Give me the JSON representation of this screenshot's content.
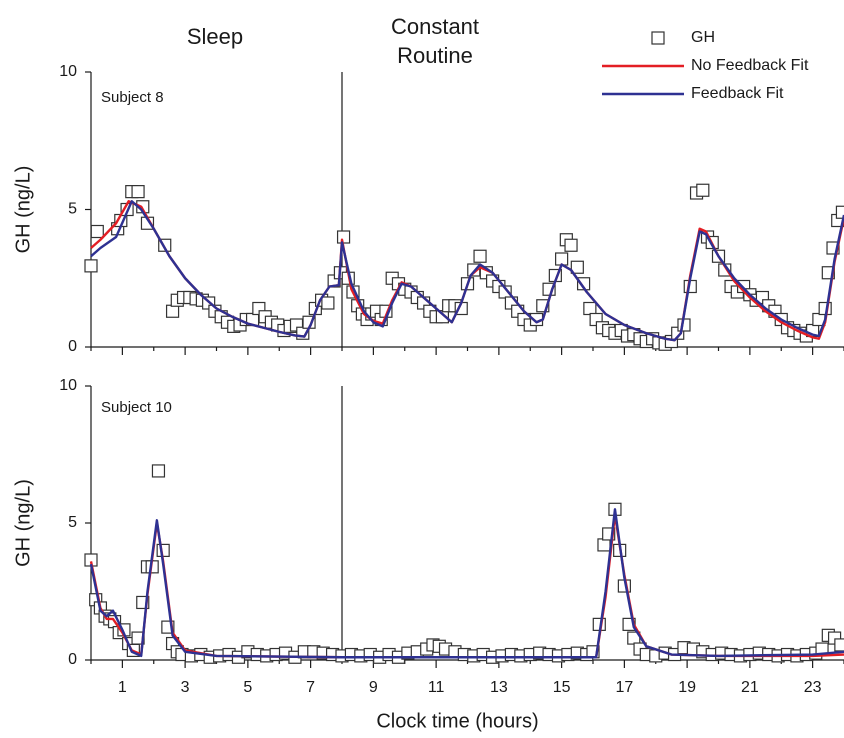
{
  "chart_data": [
    {
      "type": "line",
      "annotations": [
        "Sleep",
        "Constant",
        "Routine",
        "Subject 8"
      ],
      "ylabel": "GH (ng/L)",
      "xlim": [
        0,
        24
      ],
      "ylim": [
        0,
        10
      ],
      "yticks": [
        0,
        5,
        10
      ],
      "xticks": [
        1,
        3,
        5,
        7,
        9,
        11,
        13,
        15,
        17,
        19,
        21,
        23
      ],
      "x_minor_ticks": [
        0,
        2,
        4,
        6,
        8,
        10,
        12,
        14,
        16,
        18,
        20,
        22,
        24
      ],
      "divider_x": 8,
      "legend": "upper right",
      "series": [
        {
          "name": "GH",
          "style": "markers",
          "color": "#333333",
          "x": [
            0.0,
            0.2,
            0.85,
            0.95,
            1.15,
            1.3,
            1.5,
            1.65,
            1.8,
            2.35,
            2.6,
            2.75,
            2.95,
            3.15,
            3.35,
            3.55,
            3.75,
            3.95,
            4.15,
            4.35,
            4.55,
            4.75,
            4.95,
            5.15,
            5.35,
            5.55,
            5.75,
            5.95,
            6.15,
            6.35,
            6.55,
            6.75,
            6.95,
            7.15,
            7.35,
            7.55,
            7.75,
            7.95,
            8.05,
            8.2,
            8.35,
            8.5,
            8.65,
            8.8,
            8.95,
            9.1,
            9.25,
            9.4,
            9.6,
            9.8,
            10.0,
            10.2,
            10.4,
            10.6,
            10.8,
            11.0,
            11.2,
            11.4,
            11.6,
            11.8,
            12.0,
            12.2,
            12.4,
            12.6,
            12.8,
            13.0,
            13.2,
            13.4,
            13.6,
            13.8,
            14.0,
            14.2,
            14.4,
            14.6,
            14.8,
            15.0,
            15.15,
            15.3,
            15.5,
            15.7,
            15.9,
            16.1,
            16.3,
            16.5,
            16.7,
            16.9,
            17.1,
            17.3,
            17.5,
            17.7,
            17.9,
            18.1,
            18.3,
            18.5,
            18.7,
            18.9,
            19.1,
            19.3,
            19.5,
            19.65,
            19.8,
            20.0,
            20.2,
            20.4,
            20.6,
            20.8,
            21.0,
            21.2,
            21.4,
            21.6,
            21.8,
            22.0,
            22.2,
            22.4,
            22.6,
            22.8,
            23.0,
            23.2,
            23.4,
            23.5,
            23.65,
            23.8,
            23.95
          ],
          "values": [
            2.95,
            4.2,
            4.3,
            4.6,
            5.0,
            5.65,
            5.65,
            5.1,
            4.5,
            3.7,
            1.3,
            1.7,
            1.8,
            1.8,
            1.75,
            1.7,
            1.6,
            1.3,
            1.1,
            0.9,
            0.75,
            0.8,
            1.0,
            1.0,
            1.4,
            1.1,
            0.9,
            0.8,
            0.6,
            0.75,
            0.8,
            0.5,
            0.9,
            1.4,
            1.7,
            1.6,
            2.4,
            2.7,
            4.0,
            2.5,
            2.0,
            1.5,
            1.2,
            1.0,
            1.2,
            1.3,
            1.0,
            1.3,
            2.5,
            2.3,
            2.1,
            2.0,
            1.8,
            1.6,
            1.3,
            1.1,
            1.1,
            1.5,
            1.5,
            1.4,
            2.3,
            2.8,
            3.3,
            2.7,
            2.4,
            2.2,
            2.0,
            1.6,
            1.3,
            1.0,
            0.8,
            1.0,
            1.5,
            2.1,
            2.6,
            3.2,
            3.9,
            3.7,
            2.9,
            2.3,
            1.4,
            1.0,
            0.7,
            0.6,
            0.5,
            0.6,
            0.4,
            0.45,
            0.3,
            0.2,
            0.3,
            0.15,
            0.1,
            0.2,
            0.5,
            0.8,
            2.2,
            5.6,
            5.7,
            4.0,
            3.8,
            3.3,
            2.8,
            2.2,
            2.0,
            2.2,
            1.9,
            1.7,
            1.8,
            1.5,
            1.3,
            1.0,
            0.7,
            0.6,
            0.5,
            0.4,
            0.6,
            1.0,
            1.4,
            2.7,
            3.6,
            4.6,
            4.9
          ]
        },
        {
          "name": "No Feedback Fit",
          "style": "line",
          "color": "#e31e24",
          "x": [
            0,
            0.3,
            0.8,
            1.2,
            1.6,
            2.0,
            2.5,
            3.0,
            3.5,
            4.0,
            4.5,
            5.0,
            5.5,
            6.0,
            6.5,
            6.8,
            7.0,
            7.3,
            7.6,
            7.9,
            8.0,
            8.3,
            8.7,
            9.0,
            9.3,
            9.6,
            9.9,
            10.2,
            10.6,
            11.0,
            11.5,
            11.8,
            12.1,
            12.4,
            12.8,
            13.3,
            13.8,
            14.2,
            14.4,
            14.7,
            15.0,
            15.3,
            15.8,
            16.4,
            17.0,
            17.7,
            18.3,
            18.6,
            18.8,
            19.1,
            19.4,
            19.6,
            20.0,
            20.5,
            21.0,
            21.5,
            22.0,
            22.5,
            23.0,
            23.2,
            23.4,
            23.7,
            24.0
          ],
          "values": [
            3.6,
            3.9,
            4.5,
            5.3,
            5.1,
            4.3,
            3.3,
            2.5,
            1.9,
            1.4,
            1.1,
            0.85,
            0.7,
            0.55,
            0.42,
            0.38,
            0.8,
            1.7,
            2.2,
            2.25,
            3.9,
            2.1,
            1.2,
            0.95,
            0.85,
            1.7,
            2.35,
            2.2,
            1.8,
            1.4,
            0.9,
            1.6,
            2.6,
            2.9,
            2.7,
            2.0,
            1.3,
            0.9,
            1.0,
            2.1,
            3.0,
            2.8,
            2.0,
            1.2,
            0.8,
            0.5,
            0.3,
            0.25,
            0.5,
            2.6,
            4.3,
            4.2,
            3.3,
            2.4,
            1.8,
            1.3,
            0.9,
            0.6,
            0.35,
            0.3,
            0.9,
            3.1,
            4.7
          ]
        },
        {
          "name": "Feedback Fit",
          "style": "line",
          "color": "#2e3192",
          "x": [
            0,
            0.3,
            0.8,
            1.3,
            1.6,
            2.0,
            2.5,
            3.0,
            3.5,
            4.0,
            4.5,
            5.0,
            5.5,
            6.0,
            6.5,
            6.8,
            7.0,
            7.3,
            7.6,
            7.9,
            8.0,
            8.3,
            8.7,
            9.0,
            9.3,
            9.6,
            9.9,
            10.2,
            10.6,
            11.0,
            11.5,
            11.8,
            12.1,
            12.4,
            12.8,
            13.3,
            13.8,
            14.2,
            14.4,
            14.7,
            15.0,
            15.3,
            15.8,
            16.4,
            17.0,
            17.7,
            18.3,
            18.6,
            18.8,
            19.1,
            19.4,
            19.6,
            20.0,
            20.5,
            21.0,
            21.5,
            22.0,
            22.5,
            23.0,
            23.2,
            23.4,
            23.7,
            24.0
          ],
          "values": [
            3.3,
            3.6,
            4.0,
            5.3,
            5.0,
            4.3,
            3.3,
            2.5,
            1.9,
            1.4,
            1.1,
            0.85,
            0.7,
            0.55,
            0.42,
            0.38,
            0.8,
            1.7,
            2.2,
            2.25,
            3.8,
            2.3,
            1.3,
            0.9,
            0.75,
            1.6,
            2.3,
            2.2,
            1.8,
            1.4,
            0.9,
            1.6,
            2.6,
            3.0,
            2.7,
            2.0,
            1.3,
            0.9,
            1.0,
            2.1,
            3.0,
            2.8,
            2.0,
            1.2,
            0.8,
            0.5,
            0.3,
            0.25,
            0.5,
            2.5,
            4.2,
            4.1,
            3.3,
            2.5,
            1.9,
            1.4,
            1.0,
            0.7,
            0.45,
            0.4,
            1.0,
            3.2,
            4.8
          ]
        }
      ]
    },
    {
      "type": "line",
      "annotations": [
        "Subject 10"
      ],
      "xlabel": "Clock time (hours)",
      "ylabel": "GH (ng/L)",
      "xlim": [
        0,
        24
      ],
      "ylim": [
        0,
        10
      ],
      "yticks": [
        0,
        5,
        10
      ],
      "xticks": [
        1,
        3,
        5,
        7,
        9,
        11,
        13,
        15,
        17,
        19,
        21,
        23
      ],
      "x_minor_ticks": [
        0,
        2,
        4,
        6,
        8,
        10,
        12,
        14,
        16,
        18,
        20,
        22,
        24
      ],
      "divider_x": 8,
      "series": [
        {
          "style": "markers",
          "color": "#333333",
          "x": [
            0.0,
            0.15,
            0.3,
            0.45,
            0.6,
            0.75,
            0.9,
            1.05,
            1.2,
            1.35,
            1.5,
            1.65,
            1.8,
            1.95,
            2.15,
            2.3,
            2.45,
            2.6,
            2.75,
            2.9,
            3.2,
            3.5,
            3.8,
            4.1,
            4.4,
            4.7,
            5.0,
            5.3,
            5.6,
            5.9,
            6.2,
            6.5,
            6.8,
            7.1,
            7.4,
            7.7,
            8.0,
            8.3,
            8.6,
            8.9,
            9.2,
            9.5,
            9.8,
            10.1,
            10.4,
            10.7,
            10.9,
            11.1,
            11.3,
            11.6,
            11.9,
            12.2,
            12.5,
            12.8,
            13.1,
            13.4,
            13.7,
            14.0,
            14.3,
            14.6,
            14.9,
            15.2,
            15.5,
            15.8,
            16.0,
            16.2,
            16.35,
            16.5,
            16.7,
            16.85,
            17.0,
            17.15,
            17.3,
            17.5,
            17.7,
            18.0,
            18.3,
            18.6,
            18.9,
            19.2,
            19.5,
            19.8,
            20.1,
            20.4,
            20.7,
            21.0,
            21.3,
            21.6,
            21.9,
            22.2,
            22.5,
            22.8,
            23.1,
            23.3,
            23.5,
            23.7,
            23.9
          ],
          "values": [
            3.65,
            2.2,
            1.9,
            1.6,
            1.5,
            1.4,
            1.0,
            1.1,
            0.6,
            0.35,
            0.8,
            2.1,
            3.4,
            3.4,
            6.9,
            4.0,
            1.2,
            0.6,
            0.3,
            0.2,
            0.15,
            0.2,
            0.1,
            0.15,
            0.2,
            0.1,
            0.3,
            0.2,
            0.15,
            0.2,
            0.25,
            0.1,
            0.3,
            0.3,
            0.25,
            0.2,
            0.15,
            0.2,
            0.15,
            0.2,
            0.1,
            0.2,
            0.1,
            0.25,
            0.3,
            0.4,
            0.55,
            0.5,
            0.4,
            0.3,
            0.2,
            0.15,
            0.2,
            0.1,
            0.15,
            0.2,
            0.15,
            0.2,
            0.25,
            0.2,
            0.15,
            0.2,
            0.25,
            0.2,
            0.3,
            1.3,
            4.2,
            4.6,
            5.5,
            4.0,
            2.7,
            1.3,
            0.8,
            0.4,
            0.2,
            0.15,
            0.25,
            0.2,
            0.45,
            0.4,
            0.3,
            0.2,
            0.25,
            0.2,
            0.15,
            0.2,
            0.25,
            0.2,
            0.15,
            0.2,
            0.15,
            0.2,
            0.25,
            0.4,
            0.9,
            0.8,
            0.55
          ]
        },
        {
          "style": "line",
          "color": "#e31e24",
          "x": [
            0,
            0.3,
            0.5,
            0.7,
            1.0,
            1.3,
            1.6,
            1.8,
            2.1,
            2.3,
            2.6,
            3.0,
            4.0,
            8.0,
            12.0,
            16.1,
            16.4,
            16.7,
            17.0,
            17.3,
            17.7,
            18.5,
            20.0,
            23.0,
            24.0
          ],
          "values": [
            3.6,
            1.9,
            1.5,
            1.5,
            1.0,
            0.35,
            0.2,
            2.4,
            5.0,
            3.6,
            1.0,
            0.35,
            0.15,
            0.1,
            0.1,
            0.1,
            2.3,
            5.3,
            3.1,
            1.3,
            0.5,
            0.2,
            0.15,
            0.15,
            0.2
          ]
        },
        {
          "style": "line",
          "color": "#2e3192",
          "x": [
            0,
            0.3,
            0.5,
            0.7,
            1.0,
            1.3,
            1.6,
            1.8,
            2.1,
            2.3,
            2.6,
            3.0,
            4.0,
            8.0,
            12.0,
            16.1,
            16.4,
            16.7,
            17.0,
            17.3,
            17.7,
            18.5,
            20.0,
            23.0,
            24.0
          ],
          "values": [
            3.5,
            1.8,
            1.6,
            1.8,
            1.1,
            0.3,
            0.15,
            2.5,
            5.1,
            3.5,
            0.9,
            0.3,
            0.15,
            0.1,
            0.1,
            0.1,
            2.5,
            5.5,
            3.0,
            1.2,
            0.5,
            0.2,
            0.15,
            0.2,
            0.3
          ]
        }
      ]
    }
  ]
}
